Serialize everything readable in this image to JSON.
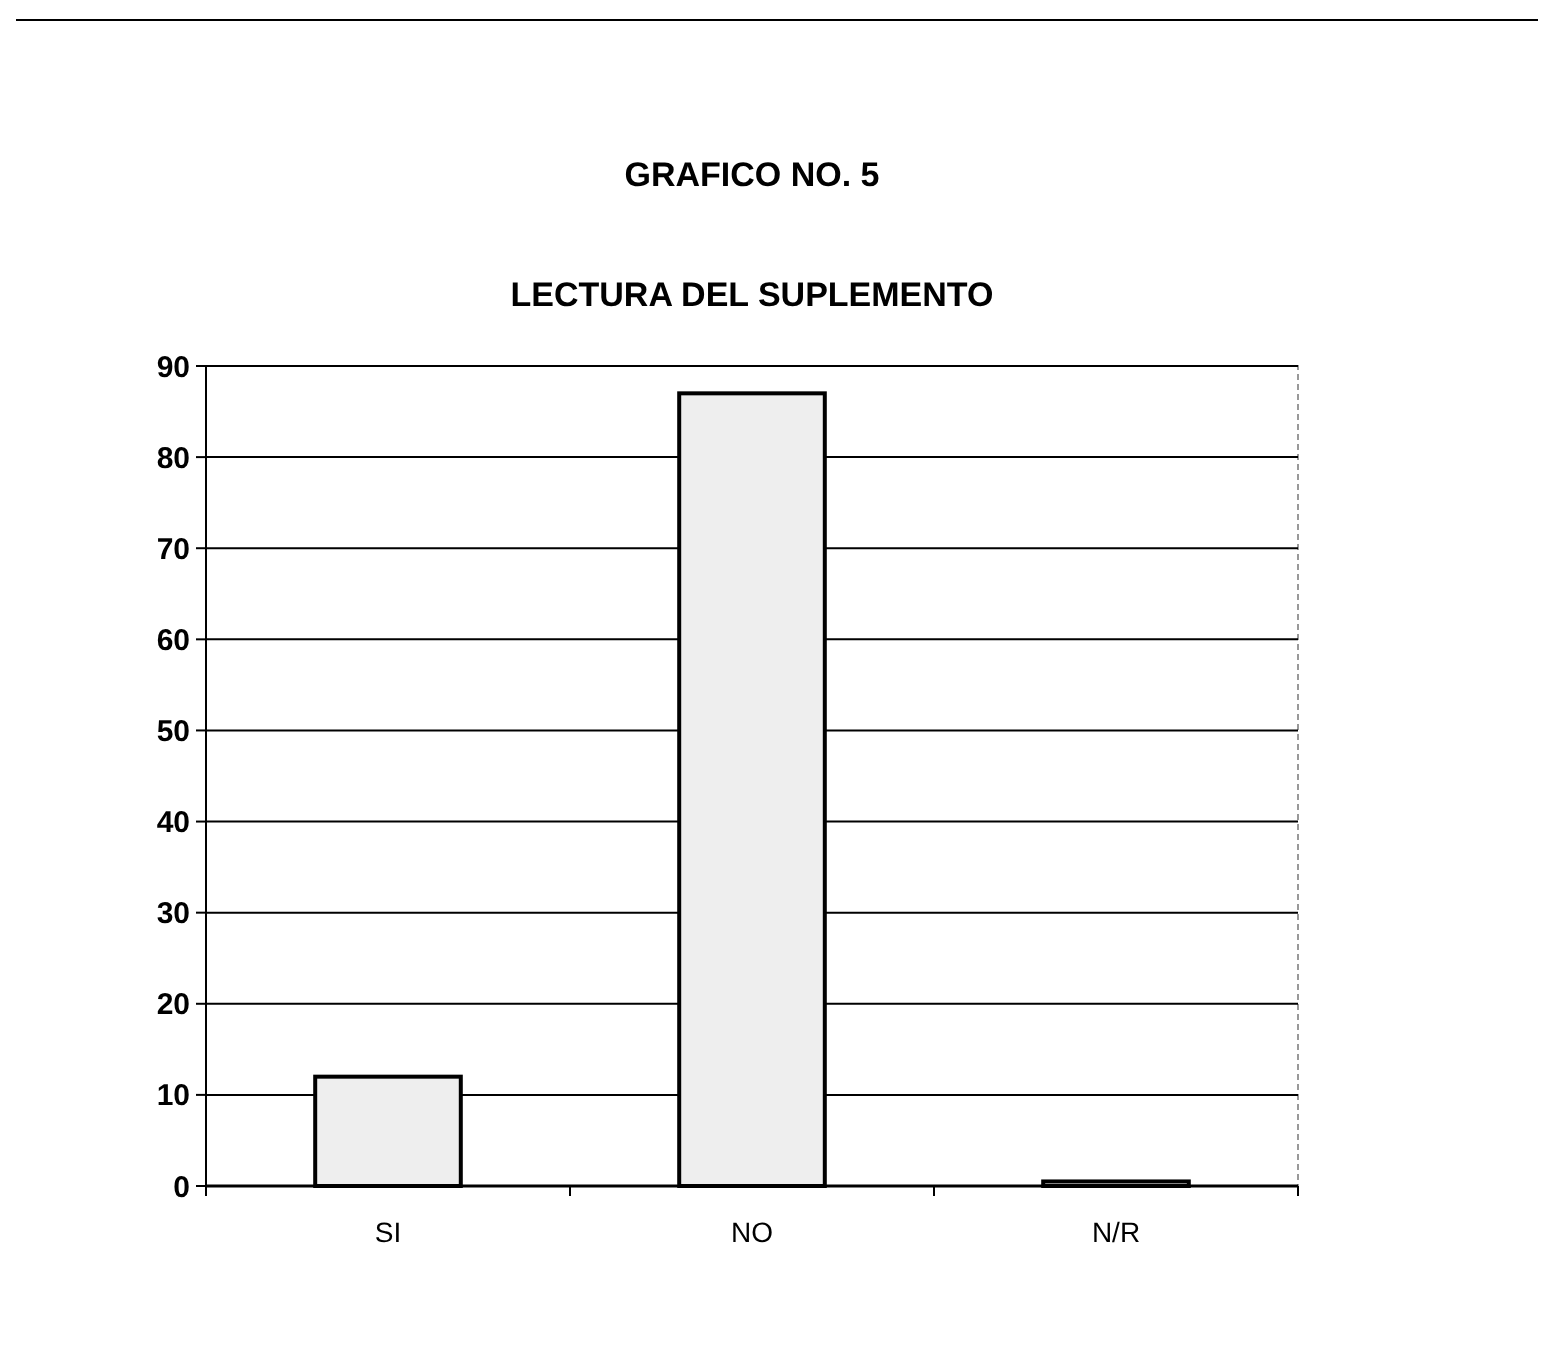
{
  "chart_data": {
    "type": "bar",
    "title": "GRAFICO NO. 5",
    "subtitle": "LECTURA DEL SUPLEMENTO",
    "categories": [
      "SI",
      "NO",
      "N/R"
    ],
    "values": [
      12,
      87,
      0.5
    ],
    "color": "#eeeeee",
    "ylim": [
      0,
      90
    ],
    "yticks": [
      0,
      10,
      20,
      30,
      40,
      50,
      60,
      70,
      80,
      90
    ],
    "grid": "y"
  }
}
